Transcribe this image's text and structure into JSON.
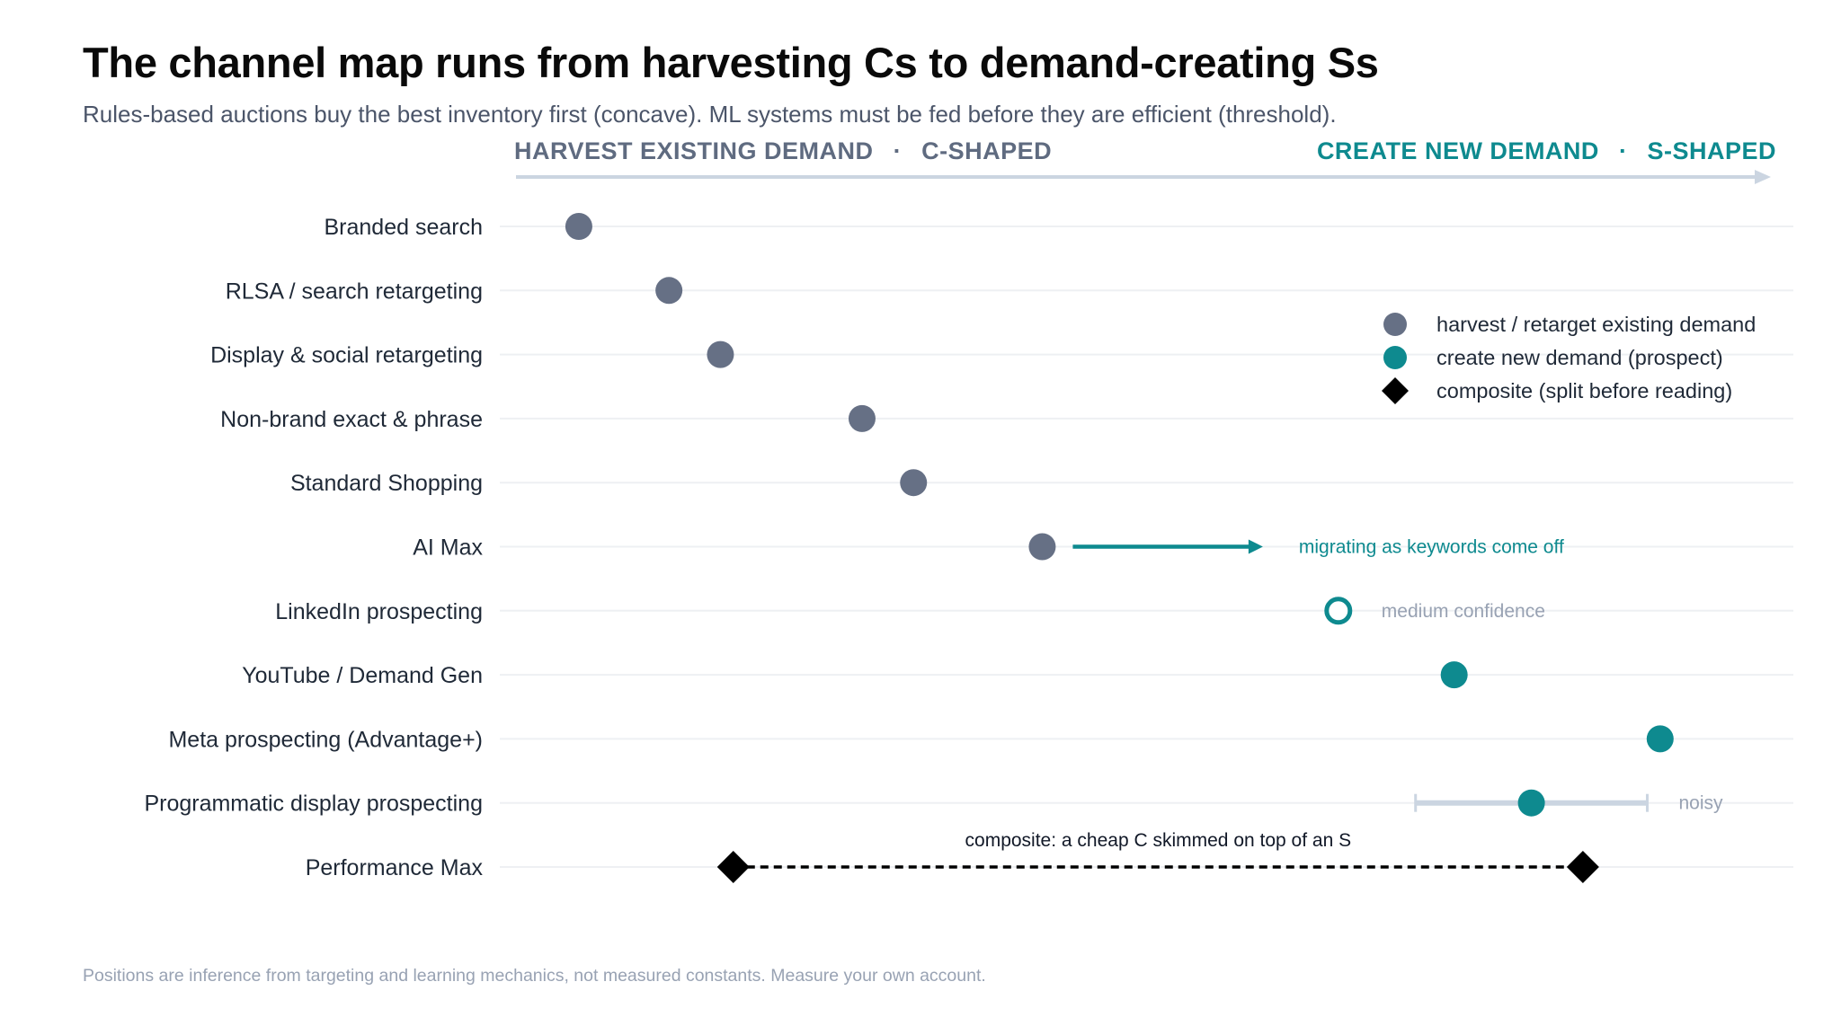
{
  "title": "The channel map runs from harvesting Cs to demand-creating Ss",
  "subtitle": "Rules-based auctions buy the best inventory first (concave). ML systems must be fed before they are efficient (threshold).",
  "footnote": "Positions are inference from targeting and learning mechanics, not measured constants. Measure your own account.",
  "colors": {
    "harvest": "#667085",
    "create": "#0e8a8f",
    "composite": "#000000",
    "axis": "#cbd5e1",
    "gridline": "#eef0f3",
    "muted_text": "#98a2b3",
    "band_left": "#5f6b80",
    "band_right": "#0e8a8f"
  },
  "chart_data": {
    "type": "scatter",
    "orientation": "horizontal dot plot",
    "axis": {
      "left_label": "HARVEST EXISTING DEMAND",
      "left_tag": "C-SHAPED",
      "right_label": "CREATE NEW DEMAND",
      "right_tag": "S-SHAPED",
      "separator": "·",
      "x_range": [
        0,
        1
      ],
      "x_tick_labels": false,
      "grid": "horizontal row lines"
    },
    "legend": {
      "placement": "top-right",
      "entries": [
        {
          "label": "harvest / retarget existing demand",
          "marker": "circle",
          "color": "#667085"
        },
        {
          "label": "create new demand (prospect)",
          "marker": "circle",
          "color": "#0e8a8f"
        },
        {
          "label": "composite (split before reading)",
          "marker": "diamond",
          "color": "#000000"
        }
      ]
    },
    "rows": [
      {
        "label": "Branded search",
        "kind": "harvest",
        "x": 0.06
      },
      {
        "label": "RLSA / search retargeting",
        "kind": "harvest",
        "x": 0.13
      },
      {
        "label": "Display & social retargeting",
        "kind": "harvest",
        "x": 0.17
      },
      {
        "label": "Non-brand exact & phrase",
        "kind": "harvest",
        "x": 0.28
      },
      {
        "label": "Standard Shopping",
        "kind": "harvest",
        "x": 0.32
      },
      {
        "label": "AI Max",
        "kind": "harvest",
        "x": 0.42,
        "arrow_to": 0.59,
        "note": "migrating as keywords come off"
      },
      {
        "label": "LinkedIn prospecting",
        "kind": "create",
        "x": 0.65,
        "hollow": true,
        "note": "medium confidence"
      },
      {
        "label": "YouTube / Demand Gen",
        "kind": "create",
        "x": 0.74
      },
      {
        "label": "Meta prospecting (Advantage+)",
        "kind": "create",
        "x": 0.9
      },
      {
        "label": "Programmatic display prospecting",
        "kind": "create",
        "x": 0.8,
        "range": [
          0.71,
          0.89
        ],
        "note": "noisy"
      },
      {
        "label": "Performance Max",
        "kind": "composite",
        "x_start": 0.18,
        "x_end": 0.84,
        "note": "composite: a cheap C skimmed on top of an S"
      }
    ]
  }
}
